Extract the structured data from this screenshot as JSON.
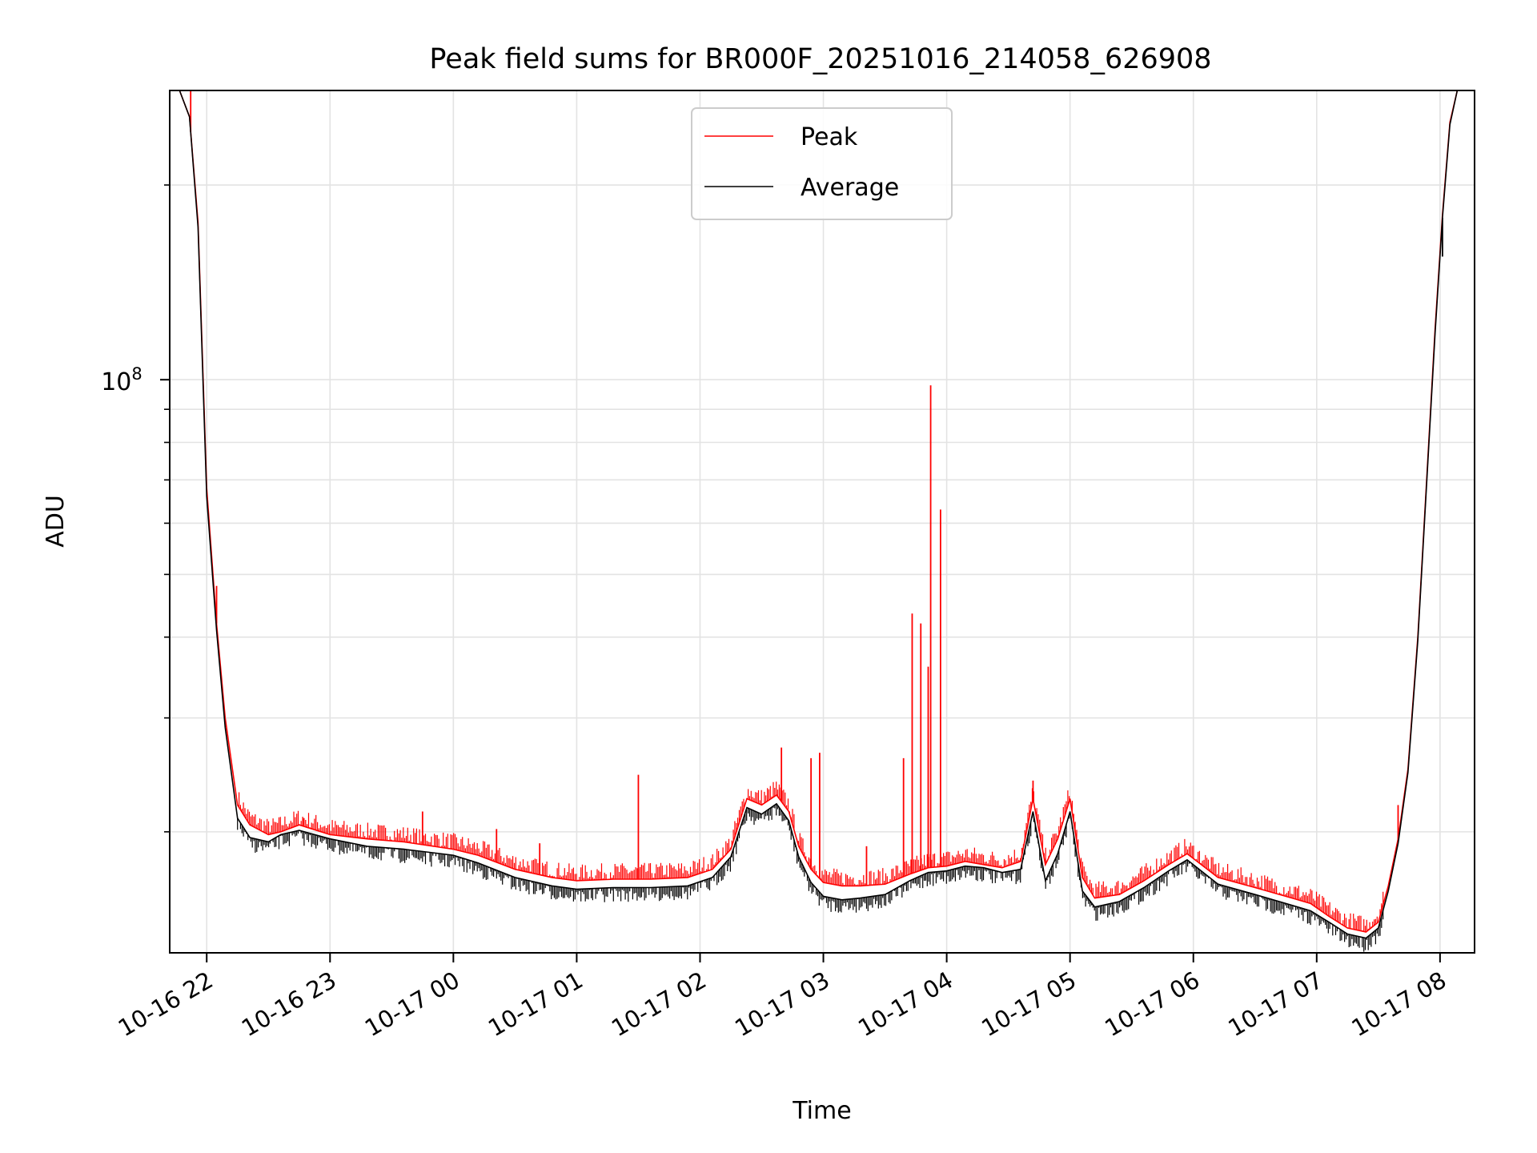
{
  "chart_data": {
    "type": "line",
    "title": "Peak field sums for BR000F_20251016_214058_626908",
    "xlabel": "Time",
    "ylabel": "ADU",
    "yscale": "log",
    "grid": true,
    "legend_position": "top-center",
    "x_unit": "hours since 2025-10-16 00:00",
    "xlim": [
      21.7,
      32.28
    ],
    "ylim": [
      13000000,
      280000000
    ],
    "x_ticks": [
      {
        "value": 22,
        "label": "10-16 22"
      },
      {
        "value": 23,
        "label": "10-16 23"
      },
      {
        "value": 24,
        "label": "10-17 00"
      },
      {
        "value": 25,
        "label": "10-17 01"
      },
      {
        "value": 26,
        "label": "10-17 02"
      },
      {
        "value": 27,
        "label": "10-17 03"
      },
      {
        "value": 28,
        "label": "10-17 04"
      },
      {
        "value": 29,
        "label": "10-17 05"
      },
      {
        "value": 30,
        "label": "10-17 06"
      },
      {
        "value": 31,
        "label": "10-17 07"
      },
      {
        "value": 32,
        "label": "10-17 08"
      }
    ],
    "y_major_ticks": [
      {
        "value": 100000000,
        "base": "10",
        "exp": "8"
      }
    ],
    "y_minor_ticks": [
      20000000,
      30000000,
      40000000,
      50000000,
      60000000,
      70000000,
      80000000,
      90000000,
      200000000
    ],
    "series": [
      {
        "name": "Peak",
        "color": "#ff0000",
        "x": [
          21.72,
          21.78,
          21.86,
          21.93,
          22.0,
          22.08,
          22.15,
          22.25,
          22.35,
          22.5,
          22.6,
          22.75,
          23.0,
          23.3,
          23.6,
          24.0,
          24.2,
          24.5,
          24.8,
          25.0,
          25.3,
          25.6,
          25.9,
          26.1,
          26.25,
          26.38,
          26.5,
          26.62,
          26.72,
          26.8,
          26.9,
          27.0,
          27.15,
          27.3,
          27.5,
          27.7,
          27.85,
          28.0,
          28.15,
          28.3,
          28.45,
          28.6,
          28.7,
          28.8,
          28.9,
          29.0,
          29.1,
          29.2,
          29.4,
          29.6,
          29.8,
          29.95,
          30.2,
          30.5,
          30.8,
          30.95,
          31.1,
          31.25,
          31.4,
          31.5,
          31.58,
          31.66,
          31.74,
          31.82,
          31.9,
          31.96,
          32.02,
          32.08,
          32.14,
          32.2,
          32.28
        ],
        "y": [
          282000000,
          280000000,
          255000000,
          175000000,
          68000000,
          42000000,
          30000000,
          22000000,
          20500000,
          19800000,
          20000000,
          20500000,
          19800000,
          19500000,
          19300000,
          18800000,
          18400000,
          17500000,
          17000000,
          16800000,
          16900000,
          16900000,
          17000000,
          17500000,
          18800000,
          22500000,
          22000000,
          22800000,
          21500000,
          19000000,
          17500000,
          16700000,
          16500000,
          16500000,
          16600000,
          17200000,
          17600000,
          17700000,
          18000000,
          17800000,
          17600000,
          18000000,
          22500000,
          17800000,
          19500000,
          22500000,
          17000000,
          15800000,
          16000000,
          16800000,
          17800000,
          18500000,
          17000000,
          16400000,
          15800000,
          15500000,
          14800000,
          14200000,
          14000000,
          14500000,
          16500000,
          19500000,
          25000000,
          40000000,
          75000000,
          120000000,
          180000000,
          250000000,
          280000000,
          285000000,
          285000000
        ],
        "spikes": [
          {
            "x": 21.87,
            "y": 282000000
          },
          {
            "x": 22.08,
            "y": 48000000
          },
          {
            "x": 22.78,
            "y": 21000000
          },
          {
            "x": 23.75,
            "y": 21500000
          },
          {
            "x": 24.35,
            "y": 20200000
          },
          {
            "x": 24.7,
            "y": 19200000
          },
          {
            "x": 25.5,
            "y": 24500000
          },
          {
            "x": 26.66,
            "y": 27000000
          },
          {
            "x": 26.9,
            "y": 26000000
          },
          {
            "x": 26.97,
            "y": 26500000
          },
          {
            "x": 27.35,
            "y": 19000000
          },
          {
            "x": 27.65,
            "y": 26000000
          },
          {
            "x": 27.72,
            "y": 43500000
          },
          {
            "x": 27.79,
            "y": 42000000
          },
          {
            "x": 27.85,
            "y": 36000000
          },
          {
            "x": 27.87,
            "y": 98000000
          },
          {
            "x": 27.95,
            "y": 63000000
          },
          {
            "x": 28.7,
            "y": 24000000
          },
          {
            "x": 31.66,
            "y": 22000000
          }
        ]
      },
      {
        "name": "Average",
        "color": "#000000",
        "x": [
          21.72,
          21.78,
          21.86,
          21.93,
          22.0,
          22.08,
          22.15,
          22.25,
          22.35,
          22.5,
          22.6,
          22.75,
          23.0,
          23.3,
          23.6,
          24.0,
          24.2,
          24.5,
          24.8,
          25.0,
          25.3,
          25.6,
          25.9,
          26.1,
          26.25,
          26.38,
          26.5,
          26.62,
          26.72,
          26.8,
          26.9,
          27.0,
          27.15,
          27.3,
          27.5,
          27.7,
          27.85,
          28.0,
          28.15,
          28.3,
          28.45,
          28.6,
          28.7,
          28.8,
          28.9,
          29.0,
          29.1,
          29.2,
          29.4,
          29.6,
          29.8,
          29.95,
          30.2,
          30.5,
          30.8,
          30.95,
          31.1,
          31.25,
          31.4,
          31.5,
          31.58,
          31.66,
          31.74,
          31.82,
          31.9,
          31.96,
          32.02,
          32.08,
          32.14,
          32.2,
          32.28
        ],
        "y": [
          282000000,
          280000000,
          255000000,
          172000000,
          66000000,
          41000000,
          29000000,
          21000000,
          19600000,
          19300000,
          19800000,
          20100000,
          19500000,
          19000000,
          18800000,
          18400000,
          17900000,
          17000000,
          16500000,
          16300000,
          16400000,
          16400000,
          16500000,
          17000000,
          18300000,
          21800000,
          21300000,
          22100000,
          20800000,
          18300000,
          16700000,
          15900000,
          15700000,
          15800000,
          16000000,
          16800000,
          17300000,
          17400000,
          17700000,
          17600000,
          17300000,
          17500000,
          21500000,
          16800000,
          18500000,
          21500000,
          16200000,
          15300000,
          15600000,
          16400000,
          17400000,
          18100000,
          16600000,
          16000000,
          15400000,
          15100000,
          14500000,
          13900000,
          13700000,
          14200000,
          16200000,
          19200000,
          24700000,
          39500000,
          74000000,
          118000000,
          178000000,
          248000000,
          280000000,
          285000000,
          285000000
        ],
        "spikes": [
          {
            "x": 32.02,
            "y": 155000000
          }
        ]
      }
    ]
  }
}
